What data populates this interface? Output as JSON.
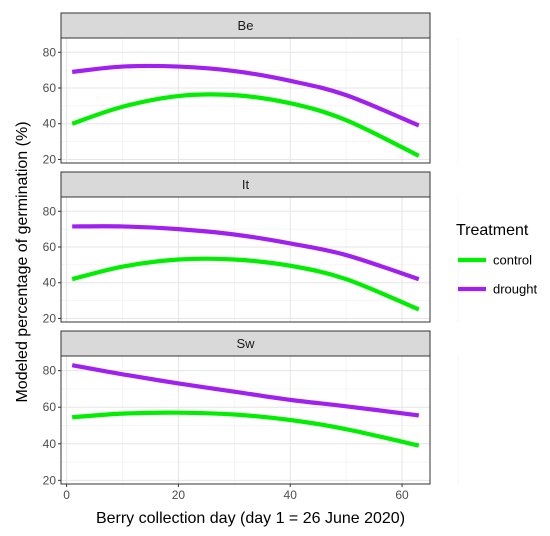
{
  "chart_data": {
    "type": "line",
    "facet_by": "site",
    "xlabel": "Berry collection day (day 1 = 26 June 2020)",
    "ylabel": "Modeled percentage of germination (%)",
    "xlim": [
      -1,
      65
    ],
    "ylim": [
      18,
      88
    ],
    "x_ticks": [
      "0",
      "20",
      "40",
      "60"
    ],
    "y_ticks": [
      "20",
      "40",
      "60",
      "80"
    ],
    "grid": true,
    "legend": {
      "title": "Treatment",
      "position": "right",
      "entries": [
        {
          "label": "control",
          "color": "#00ee00"
        },
        {
          "label": "drought",
          "color": "#a020f0"
        }
      ]
    },
    "panels": [
      {
        "label": "Be",
        "series": [
          {
            "name": "control",
            "x": [
              1,
              10,
              20,
              30,
              40,
              50,
              63
            ],
            "y": [
              40,
              49.5,
              55.5,
              56,
              51.5,
              42,
              22
            ]
          },
          {
            "name": "drought",
            "x": [
              1,
              10,
              20,
              30,
              40,
              50,
              63
            ],
            "y": [
              69,
              72,
              72,
              69.5,
              64,
              56,
              39
            ]
          }
        ]
      },
      {
        "label": "It",
        "series": [
          {
            "name": "control",
            "x": [
              1,
              10,
              20,
              30,
              40,
              50,
              63
            ],
            "y": [
              42,
              49,
              53,
              53,
              49.5,
              42,
              25
            ]
          },
          {
            "name": "drought",
            "x": [
              1,
              10,
              20,
              30,
              40,
              50,
              63
            ],
            "y": [
              71.5,
              71.5,
              70,
              67,
              62,
              55.5,
              42
            ]
          }
        ]
      },
      {
        "label": "Sw",
        "series": [
          {
            "name": "control",
            "x": [
              1,
              10,
              20,
              30,
              40,
              50,
              63
            ],
            "y": [
              54.5,
              56.5,
              57,
              56,
              53,
              48,
              39
            ]
          },
          {
            "name": "drought",
            "x": [
              1,
              10,
              20,
              30,
              40,
              50,
              63
            ],
            "y": [
              83,
              78,
              73,
              68.5,
              64,
              60.5,
              55.5
            ]
          }
        ]
      }
    ]
  }
}
